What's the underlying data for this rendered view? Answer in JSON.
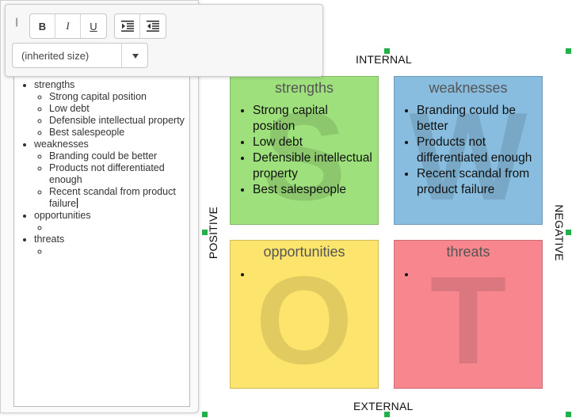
{
  "toolbar": {
    "bold_label": "B",
    "italic_label": "I",
    "underline_label": "U",
    "font_size_value": "(inherited size)"
  },
  "editor": {
    "items": [
      {
        "label": "strengths",
        "children": [
          "Strong capital position",
          "Low debt",
          "Defensible intellectual property",
          "Best salespeople"
        ]
      },
      {
        "label": "weaknesses",
        "children": [
          "Branding could be better",
          "Products not differentiated enough",
          "Recent scandal from product failure"
        ]
      },
      {
        "label": "opportunities",
        "children": [
          ""
        ]
      },
      {
        "label": "threats",
        "children": [
          ""
        ]
      }
    ]
  },
  "diagram": {
    "top_label": "INTERNAL",
    "bottom_label": "EXTERNAL",
    "left_label": "POSITIVE",
    "right_label": "NEGATIVE",
    "quadrants": {
      "strengths": {
        "letter": "S",
        "title": "strengths",
        "color": "#9ee07c",
        "items": [
          "Strong capital position",
          "Low debt",
          "Defensible intellectual property",
          "Best salespeople"
        ]
      },
      "weaknesses": {
        "letter": "W",
        "title": "weaknesses",
        "color": "#88bde0",
        "items": [
          "Branding could be better",
          "Products not differentiated enough",
          "Recent scandal from product failure"
        ]
      },
      "opportunities": {
        "letter": "O",
        "title": "opportunities",
        "color": "#fde46c",
        "items": [
          ""
        ]
      },
      "threats": {
        "letter": "T",
        "title": "threats",
        "color": "#f7868e",
        "items": [
          ""
        ]
      }
    }
  }
}
